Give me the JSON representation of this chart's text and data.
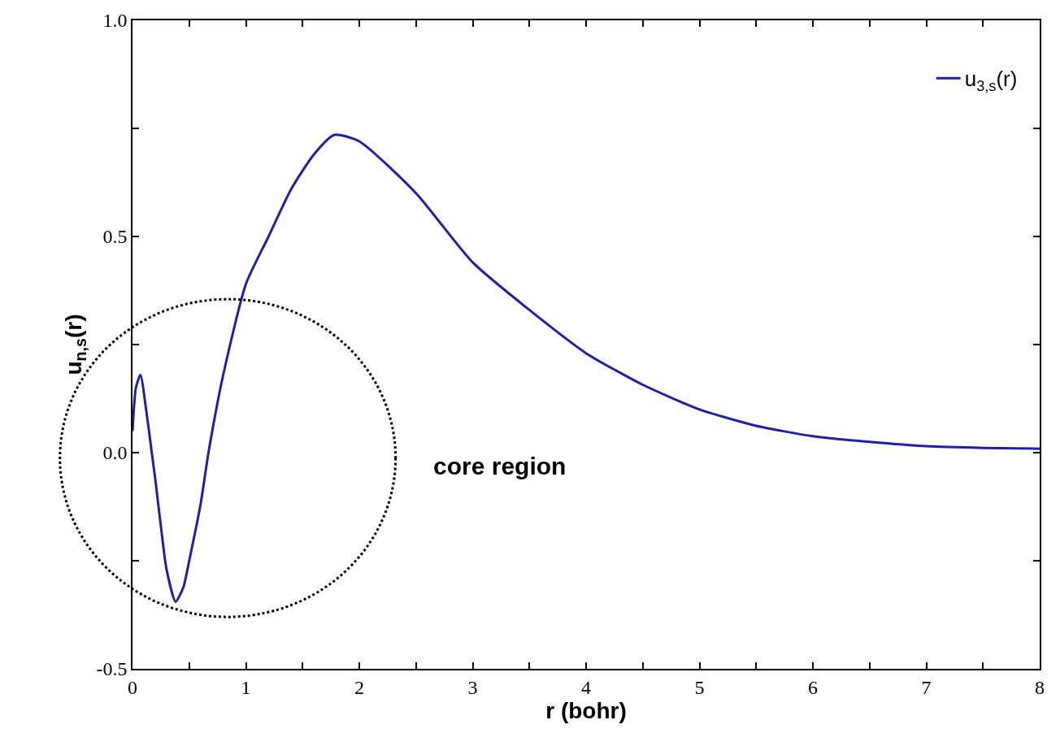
{
  "chart_data": {
    "type": "line",
    "xlabel": "r (bohr)",
    "ylabel": "u$_{n,s}$(r)",
    "x": [
      0,
      0.03,
      0.07,
      0.12,
      0.17,
      0.2,
      0.25,
      0.3,
      0.38,
      0.45,
      0.5,
      0.6,
      0.67,
      0.8,
      1.0,
      1.2,
      1.4,
      1.6,
      1.78,
      2.0,
      2.5,
      3.0,
      3.5,
      4.0,
      4.5,
      5.0,
      5.5,
      6.0,
      6.5,
      7.0,
      7.5,
      8.0
    ],
    "series": [
      {
        "name": "u$_{3,s}$(r)",
        "color": "#1f1fa8",
        "values": [
          0.05,
          0.15,
          0.18,
          0.1,
          0.0,
          -0.06,
          -0.17,
          -0.27,
          -0.345,
          -0.31,
          -0.25,
          -0.12,
          0.0,
          0.18,
          0.39,
          0.5,
          0.61,
          0.69,
          0.735,
          0.72,
          0.6,
          0.44,
          0.33,
          0.23,
          0.157,
          0.1,
          0.062,
          0.038,
          0.025,
          0.015,
          0.011,
          0.009
        ]
      }
    ],
    "annotations": [
      "core region"
    ],
    "xlim": [
      0,
      8
    ],
    "ylim": [
      -0.5,
      1.0
    ],
    "xticks": [
      0,
      {
        "value": 0.5,
        "label": null
      },
      1,
      {
        "value": 1.5,
        "label": null
      },
      2,
      {
        "value": 2.5,
        "label": null
      },
      3,
      {
        "value": 3.5,
        "label": null
      },
      4,
      {
        "value": 4.5,
        "label": null
      },
      5,
      {
        "value": 5.5,
        "label": null
      },
      6,
      {
        "value": 6.5,
        "label": null
      },
      7,
      {
        "value": 7.5,
        "label": null
      },
      8
    ],
    "yticks": [
      {
        "value": -0.5,
        "label": "-0.5"
      },
      {
        "value": -0.25,
        "label": null
      },
      {
        "value": 0,
        "label": "0.0"
      },
      {
        "value": 0.25,
        "label": null
      },
      {
        "value": 0.5,
        "label": "0.5"
      },
      {
        "value": 0.75,
        "label": null
      },
      {
        "value": 1.0,
        "label": "1.0"
      }
    ],
    "legend": "top right",
    "marker": "none",
    "line_style": "solid"
  }
}
